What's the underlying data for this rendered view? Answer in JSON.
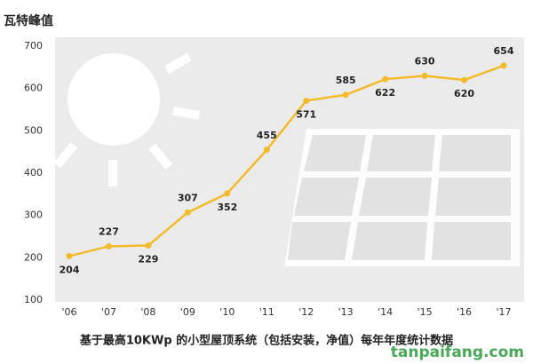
{
  "chart_data": {
    "type": "line",
    "y_axis_title": "瓦特峰值",
    "caption": "基于最高10KWp 的小型屋顶系统（包括安装，净值）每年年度统计数据",
    "watermark": "tanpaifang.com",
    "categories": [
      "'06",
      "'07",
      "'08",
      "'09",
      "'10",
      "'11",
      "'12",
      "'13",
      "'14",
      "'15",
      "'16",
      "'17"
    ],
    "values": [
      204,
      227,
      229,
      307,
      352,
      455,
      571,
      585,
      622,
      630,
      620,
      654
    ],
    "color": "#f2bb2c",
    "ylim": [
      100,
      700
    ],
    "yticks": [
      100,
      200,
      300,
      400,
      500,
      600,
      700
    ]
  }
}
